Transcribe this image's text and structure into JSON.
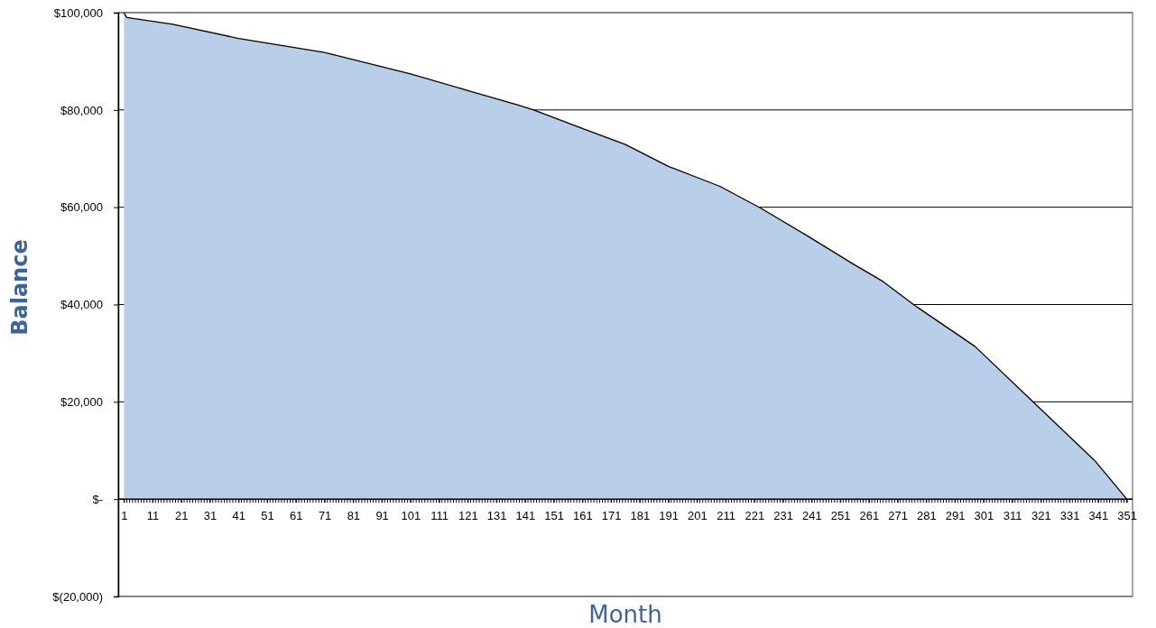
{
  "chart_data": {
    "type": "area",
    "xlabel": "Month",
    "ylabel": "Balance",
    "x": [
      1,
      2,
      18,
      41,
      71,
      101,
      121,
      138,
      144,
      161,
      176,
      191,
      209,
      223,
      239,
      255,
      266,
      277,
      298,
      319,
      340,
      351
    ],
    "series": [
      {
        "color": "#b9cfe9",
        "values": [
          100000,
          99000,
          97600,
          94700,
          91800,
          87400,
          84000,
          81100,
          80000,
          76200,
          72900,
          68400,
          64300,
          59900,
          54300,
          48500,
          44700,
          39800,
          31400,
          19600,
          7800,
          0
        ]
      }
    ],
    "xlim": [
      -1,
      353
    ],
    "xticks": [
      1,
      11,
      21,
      31,
      41,
      51,
      61,
      71,
      81,
      91,
      101,
      111,
      121,
      131,
      141,
      151,
      161,
      171,
      181,
      191,
      201,
      211,
      221,
      231,
      241,
      251,
      261,
      271,
      281,
      291,
      301,
      311,
      321,
      331,
      341,
      351
    ],
    "ylim": [
      -20000,
      100000
    ],
    "yticks": [
      {
        "value": -20000,
        "label": "$(20,000)"
      },
      {
        "value": 0,
        "label": "$-"
      },
      {
        "value": 20000,
        "label": "$20,000"
      },
      {
        "value": 40000,
        "label": "$40,000"
      },
      {
        "value": 60000,
        "label": "$60,000"
      },
      {
        "value": 80000,
        "label": "$80,000"
      },
      {
        "value": 100000,
        "label": "$100,000"
      }
    ],
    "grid": "y"
  }
}
